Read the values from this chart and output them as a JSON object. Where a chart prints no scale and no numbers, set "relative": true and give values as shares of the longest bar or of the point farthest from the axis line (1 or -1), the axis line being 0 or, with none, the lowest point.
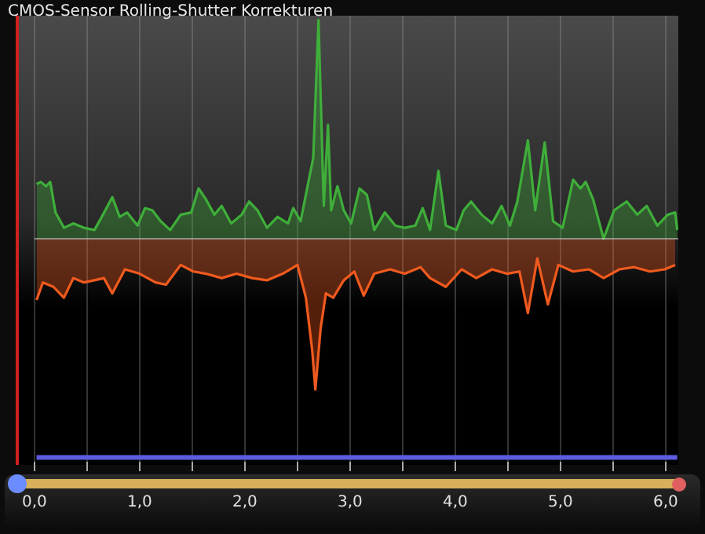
{
  "chart_data": {
    "type": "area",
    "title": "CMOS-Sensor Rolling-Shutter Korrekturen",
    "relative": true,
    "xlim": [
      0,
      6.12
    ],
    "xticks": [
      {
        "value": 0,
        "label": "0,0"
      },
      {
        "value": 0.5,
        "label": null
      },
      {
        "value": 1,
        "label": "1,0"
      },
      {
        "value": 1.5,
        "label": null
      },
      {
        "value": 2,
        "label": "2,0"
      },
      {
        "value": 2.5,
        "label": null
      },
      {
        "value": 3,
        "label": "3,0"
      },
      {
        "value": 3.5,
        "label": null
      },
      {
        "value": 4,
        "label": "4,0"
      },
      {
        "value": 4.5,
        "label": null
      },
      {
        "value": 5,
        "label": "5,0"
      },
      {
        "value": 5.5,
        "label": null
      },
      {
        "value": 6,
        "label": "6,0"
      }
    ],
    "tick_labels": "x",
    "grid": "x",
    "legend": false,
    "marker": "none",
    "line_style": "solid",
    "series": [
      {
        "color": "#3fae3a",
        "x": [
          0.02,
          0.06,
          0.11,
          0.15,
          0.2,
          0.28,
          0.37,
          0.47,
          0.57,
          0.64,
          0.74,
          0.81,
          0.88,
          0.98,
          1.05,
          1.12,
          1.2,
          1.29,
          1.39,
          1.49,
          1.56,
          1.63,
          1.71,
          1.78,
          1.87,
          1.97,
          2.04,
          2.12,
          2.21,
          2.31,
          2.41,
          2.46,
          2.53,
          2.6,
          2.65,
          2.7,
          2.75,
          2.79,
          2.82,
          2.88,
          2.94,
          3.01,
          3.09,
          3.16,
          3.23,
          3.33,
          3.43,
          3.52,
          3.62,
          3.69,
          3.76,
          3.84,
          3.91,
          4.01,
          4.08,
          4.15,
          4.25,
          4.35,
          4.44,
          4.52,
          4.59,
          4.69,
          4.76,
          4.85,
          4.93,
          5.02,
          5.12,
          5.19,
          5.24,
          5.31,
          5.41,
          5.51,
          5.63,
          5.73,
          5.82,
          5.92,
          6.02,
          6.09,
          6.11
        ],
        "values": [
          0.25,
          0.26,
          0.24,
          0.26,
          0.12,
          0.05,
          0.07,
          0.05,
          0.04,
          0.1,
          0.19,
          0.1,
          0.12,
          0.06,
          0.14,
          0.13,
          0.08,
          0.04,
          0.11,
          0.12,
          0.23,
          0.18,
          0.11,
          0.15,
          0.07,
          0.11,
          0.17,
          0.13,
          0.05,
          0.1,
          0.07,
          0.14,
          0.08,
          0.25,
          0.37,
          1.0,
          0.15,
          0.52,
          0.13,
          0.24,
          0.13,
          0.07,
          0.23,
          0.2,
          0.04,
          0.12,
          0.06,
          0.05,
          0.06,
          0.14,
          0.04,
          0.31,
          0.06,
          0.04,
          0.13,
          0.17,
          0.11,
          0.07,
          0.15,
          0.06,
          0.17,
          0.45,
          0.13,
          0.44,
          0.08,
          0.05,
          0.27,
          0.23,
          0.26,
          0.18,
          0,
          0.13,
          0.17,
          0.11,
          0.15,
          0.06,
          0.11,
          0.12,
          0.04
        ]
      },
      {
        "color": "#f05a1e",
        "x": [
          0.02,
          0.08,
          0.18,
          0.28,
          0.37,
          0.47,
          0.57,
          0.66,
          0.74,
          0.86,
          1.0,
          1.15,
          1.25,
          1.39,
          1.51,
          1.63,
          1.78,
          1.92,
          2.07,
          2.21,
          2.36,
          2.5,
          2.58,
          2.64,
          2.67,
          2.72,
          2.77,
          2.84,
          2.94,
          3.04,
          3.13,
          3.23,
          3.38,
          3.52,
          3.67,
          3.76,
          3.91,
          4.06,
          4.2,
          4.35,
          4.49,
          4.61,
          4.69,
          4.78,
          4.88,
          4.98,
          5.12,
          5.27,
          5.41,
          5.56,
          5.7,
          5.85,
          5.99,
          6.09
        ],
        "values": [
          -0.28,
          -0.2,
          -0.22,
          -0.27,
          -0.18,
          -0.2,
          -0.19,
          -0.18,
          -0.25,
          -0.14,
          -0.16,
          -0.2,
          -0.21,
          -0.12,
          -0.15,
          -0.16,
          -0.18,
          -0.16,
          -0.18,
          -0.19,
          -0.16,
          -0.12,
          -0.27,
          -0.51,
          -0.69,
          -0.41,
          -0.25,
          -0.27,
          -0.19,
          -0.15,
          -0.26,
          -0.16,
          -0.14,
          -0.16,
          -0.13,
          -0.18,
          -0.22,
          -0.14,
          -0.18,
          -0.14,
          -0.16,
          -0.15,
          -0.34,
          -0.09,
          -0.3,
          -0.12,
          -0.15,
          -0.14,
          -0.18,
          -0.14,
          -0.13,
          -0.15,
          -0.14,
          -0.12
        ]
      },
      {
        "type": "line",
        "color": "#5c5ce0",
        "x": [
          0.02,
          6.11
        ],
        "values": [
          -1,
          -1
        ]
      }
    ]
  }
}
